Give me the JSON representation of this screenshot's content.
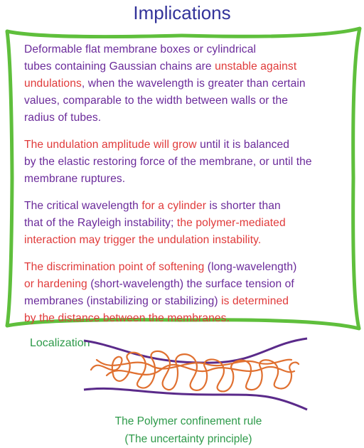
{
  "title": "Implications",
  "paragraphs": [
    [
      {
        "t": "Deformable flat membrane boxes or cylindrical",
        "c": "pu"
      },
      {
        "t": "tubes containing Gaussian chains are ",
        "c": "pu",
        "then": {
          "t": "unstable against",
          "c": "rd"
        }
      },
      {
        "t": "undulations",
        "c": "rd",
        "then": {
          "t": ", when the wavelength is greater than certain",
          "c": "pu"
        }
      },
      {
        "t": "values, comparable to the width between walls or the",
        "c": "pu"
      },
      {
        "t": "radius of tubes.",
        "c": "pu"
      }
    ],
    [
      {
        "t": "The undulation amplitude will grow",
        "c": "rd",
        "then": {
          "t": " until it is balanced",
          "c": "pu"
        }
      },
      {
        "t": "by the elastic restoring force of the membrane, or until the",
        "c": "pu"
      },
      {
        "t": "membrane ruptures.",
        "c": "pu"
      }
    ],
    [
      {
        "t": "The critical wavelength ",
        "c": "pu",
        "then": {
          "t": "for a cylinder",
          "c": "rd",
          "then": {
            "t": " is shorter than",
            "c": "pu"
          }
        }
      },
      {
        "t": "that of the Rayleigh instability; ",
        "c": "pu",
        "then": {
          "t": "the polymer-mediated",
          "c": "rd"
        }
      },
      {
        "t": "interaction may trigger the undulation instability.",
        "c": "rd"
      }
    ],
    [
      {
        "t": "The discrimination point of softening",
        "c": "rd",
        "then": {
          "t": " (long-wavelength)",
          "c": "pu"
        }
      },
      {
        "t": "or hardening",
        "c": "rd",
        "then": {
          "t": " (short-wavelength) the surface tension of",
          "c": "pu"
        }
      },
      {
        "t": "membranes (instabilizing or stabilizing) ",
        "c": "pu",
        "then": {
          "t": "is determined",
          "c": "rd"
        }
      },
      {
        "t": "by the distance between the membranes.",
        "c": "rd"
      }
    ]
  ],
  "figure": {
    "label": "Localization",
    "caption_line1": "The Polymer confinement rule",
    "caption_line2": "(The uncertainty principle)"
  },
  "colors": {
    "frame": "#5fbf3c",
    "title": "#33339a",
    "purple_text": "#6a2a9a",
    "red_text": "#e03a3a",
    "caption": "#2e9a4a",
    "membrane": "#5a2a8a",
    "polymer": "#e07030"
  }
}
